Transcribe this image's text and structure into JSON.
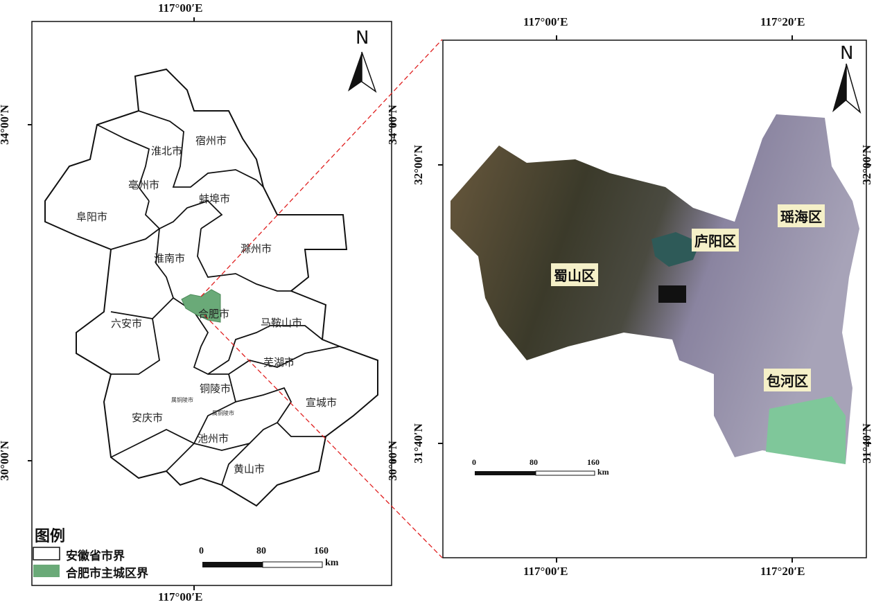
{
  "left_map": {
    "coords": {
      "top_lon": "117°00′E",
      "bottom_lon": "117°00′E",
      "lat_34": "34°00′N",
      "lat_30": "30°00′N"
    },
    "north": "N",
    "cities": [
      "宿州市",
      "淮北市",
      "亳州市",
      "蚌埠市",
      "阜阳市",
      "淮南市",
      "滁州市",
      "六安市",
      "合肥市",
      "马鞍山市",
      "芜湖市",
      "铜陵市",
      "宣城市",
      "安庆市",
      "池州市",
      "黄山市",
      "属铜陵市",
      "属铜陵市"
    ],
    "legend": {
      "title": "图例",
      "items": [
        {
          "label": "安徽省市界",
          "color": "#ffffff"
        },
        {
          "label": "合肥市主城区界",
          "color": "#6aaa78"
        }
      ]
    },
    "scale": {
      "ticks": [
        "0",
        "80",
        "160"
      ],
      "unit": "km"
    }
  },
  "right_map": {
    "coords": {
      "lon_1": "117°00′E",
      "lon_2": "117°20′E",
      "lat_1": "32°00′N",
      "lat_2": "31°40′N"
    },
    "north": "N",
    "districts": [
      "蜀山区",
      "庐阳区",
      "瑶海区",
      "包河区"
    ],
    "scale": {
      "ticks": [
        "0",
        "80",
        "160"
      ],
      "unit": "km"
    }
  }
}
